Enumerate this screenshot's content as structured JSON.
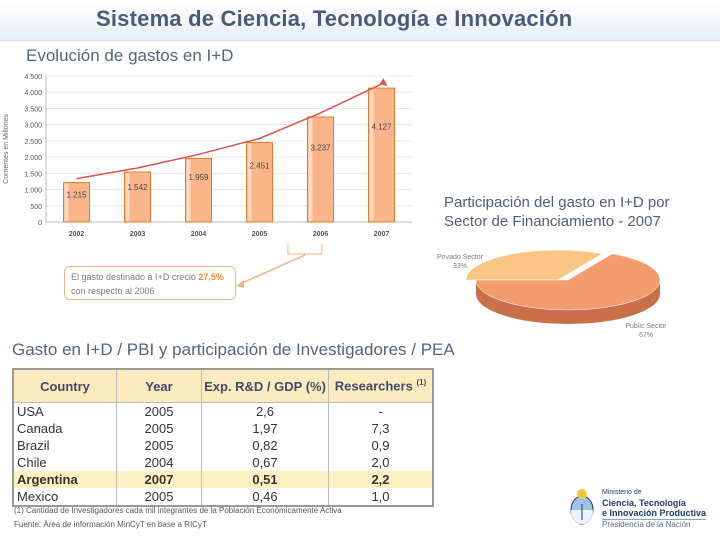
{
  "header": {
    "title": "Sistema de Ciencia, Tecnología e Innovación"
  },
  "bar_section": {
    "title": "Evolución de gastos en I+D"
  },
  "callout": {
    "text_prefix": "El gasto destinado a I+D creció ",
    "highlight": "27,5%",
    "text_suffix": "con respecto al 2006"
  },
  "pie_section": {
    "title_line1": "Participación del gasto en I+D  por",
    "title_line2": "Sector de Financiamiento - 2007"
  },
  "table_section": {
    "title": "Gasto en I+D / PBI y participación de Investigadores / PEA"
  },
  "table": {
    "headers": [
      "Country",
      "Year",
      "Exp. R&D / GDP (%)",
      "Researchers"
    ],
    "researchers_note": "(1)",
    "rows": [
      {
        "country": "USA",
        "year": "2005",
        "exp": "2,6",
        "researchers": "-"
      },
      {
        "country": "Canada",
        "year": "2005",
        "exp": "1,97",
        "researchers": "7,3"
      },
      {
        "country": "Brazil",
        "year": "2005",
        "exp": "0,82",
        "researchers": "0,9"
      },
      {
        "country": "Chile",
        "year": "2004",
        "exp": "0,67",
        "researchers": "2,0"
      },
      {
        "country": "Argentina",
        "year": "2007",
        "exp": "0,51",
        "researchers": "2,2"
      },
      {
        "country": "Mexico",
        "year": "2005",
        "exp": "0,46",
        "researchers": "1,0"
      }
    ],
    "highlight_row": "Argentina"
  },
  "footnotes": {
    "note1": "(1) Cantidad de Investigadores cada mil integrantes de la Población Económicamente Activa",
    "source": "Fuente: Área de información MinCyT en base a RICyT"
  },
  "logo": {
    "line1": "Ministerio de",
    "line2": "Ciencia, Tecnología",
    "line3": "e Innovación Productiva",
    "line4": "Presidencia de la Nación"
  },
  "colors": {
    "bar_fill": "#fbb58a",
    "bar_stroke": "#e07a2f",
    "trend": "#d9534f",
    "pie_public": "#f29b6d",
    "pie_private": "#fbc683"
  },
  "chart_data": [
    {
      "type": "bar",
      "categories": [
        "2002",
        "2003",
        "2004",
        "2005",
        "2006",
        "2007"
      ],
      "values": [
        1215,
        1542,
        1959,
        2451,
        3237,
        4127
      ],
      "value_labels": [
        "1.215",
        "1.542",
        "1.959",
        "2.451",
        "3.237",
        "4.127"
      ],
      "ylabel": "Corrientes en Millones",
      "ylim": [
        0,
        4500
      ],
      "yticks": [
        0,
        500,
        1000,
        1500,
        2000,
        2500,
        3000,
        3500,
        4000,
        4500
      ],
      "ytick_labels": [
        "0",
        "500",
        "1.000",
        "1.500",
        "2.000",
        "2.500",
        "3.000",
        "3.500",
        "4.000",
        "4.500"
      ],
      "grid": true,
      "trend_line": true
    },
    {
      "type": "pie",
      "labels": [
        "Privado Sector",
        "Public Sector"
      ],
      "values": [
        33,
        67
      ],
      "value_labels": [
        "33%",
        "67%"
      ]
    }
  ]
}
